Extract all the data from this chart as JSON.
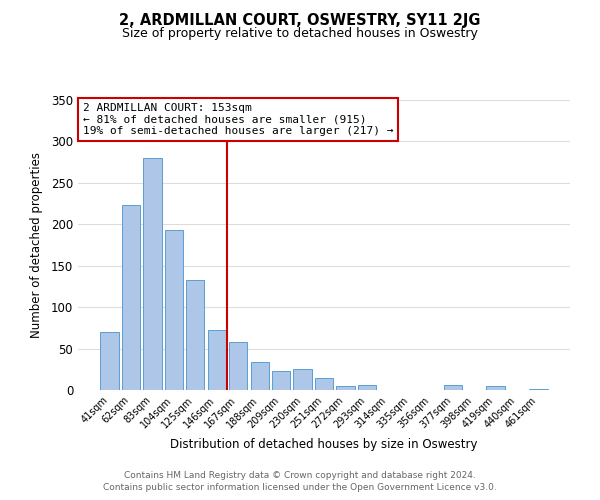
{
  "title": "2, ARDMILLAN COURT, OSWESTRY, SY11 2JG",
  "subtitle": "Size of property relative to detached houses in Oswestry",
  "xlabel": "Distribution of detached houses by size in Oswestry",
  "ylabel": "Number of detached properties",
  "categories": [
    "41sqm",
    "62sqm",
    "83sqm",
    "104sqm",
    "125sqm",
    "146sqm",
    "167sqm",
    "188sqm",
    "209sqm",
    "230sqm",
    "251sqm",
    "272sqm",
    "293sqm",
    "314sqm",
    "335sqm",
    "356sqm",
    "377sqm",
    "398sqm",
    "419sqm",
    "440sqm",
    "461sqm"
  ],
  "values": [
    70,
    223,
    280,
    193,
    133,
    72,
    58,
    34,
    23,
    25,
    15,
    5,
    6,
    0,
    0,
    0,
    6,
    0,
    5,
    0,
    1
  ],
  "bar_color": "#aec6e8",
  "bar_edge_color": "#5a9fd4",
  "annotation_text_line1": "2 ARDMILLAN COURT: 153sqm",
  "annotation_text_line2": "← 81% of detached houses are smaller (915)",
  "annotation_text_line3": "19% of semi-detached houses are larger (217) →",
  "annotation_box_color": "#ffffff",
  "annotation_box_edge_color": "#cc0000",
  "vline_color": "#cc0000",
  "ylim": [
    0,
    350
  ],
  "yticks": [
    0,
    50,
    100,
    150,
    200,
    250,
    300,
    350
  ],
  "footer_line1": "Contains HM Land Registry data © Crown copyright and database right 2024.",
  "footer_line2": "Contains public sector information licensed under the Open Government Licence v3.0.",
  "background_color": "#ffffff",
  "grid_color": "#dddddd"
}
